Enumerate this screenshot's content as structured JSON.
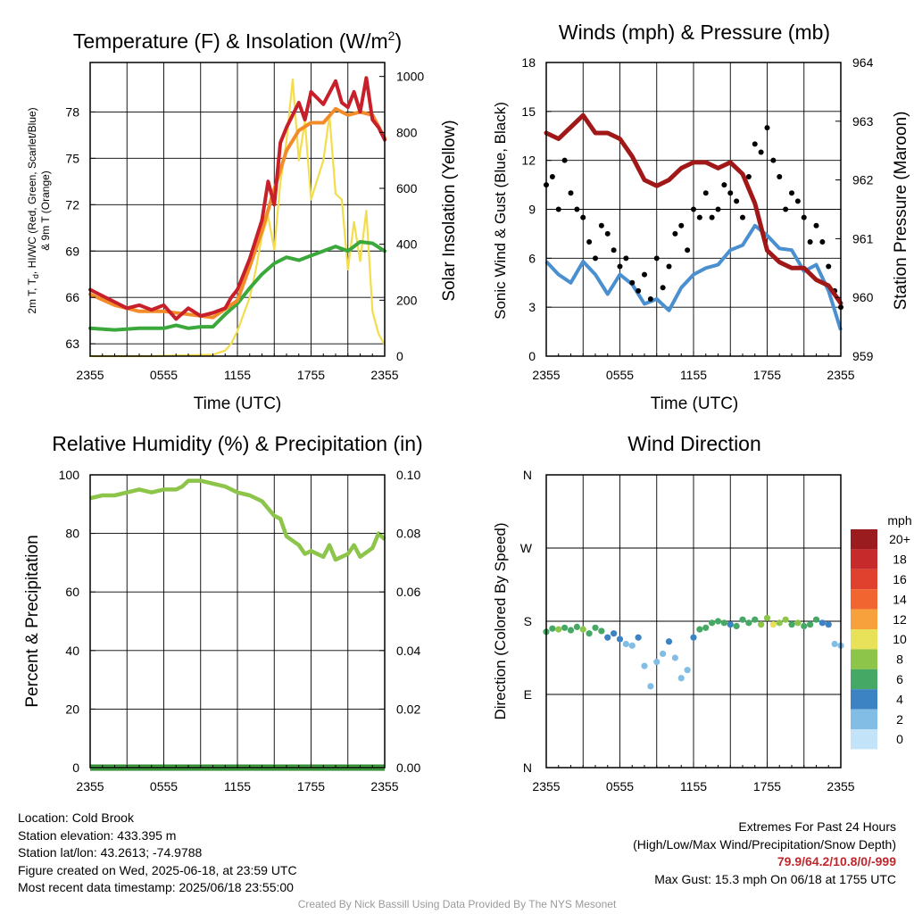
{
  "panels": {
    "temperature": {
      "title": "Temperature (F) & Insolation (W/m",
      "title_sup": "2",
      "title_end": ")",
      "ylabel_line1": "2m T, T",
      "ylabel_sub": "d",
      "ylabel_line1_end": ", HI/WC (Red, Green, Scarlet/Blue)",
      "ylabel_line2": "& 9m T (Orange)",
      "y2label": "Solar Insolation (Yellow)",
      "xlabel": "Time (UTC)"
    },
    "winds": {
      "title": "Winds (mph) & Pressure (mb)",
      "ylabel": "Sonic Wind & Gust (Blue, Black)",
      "y2label": "Station Pressure (Maroon)",
      "xlabel": "Time (UTC)"
    },
    "humidity": {
      "title": "Relative Humidity (%) & Precipitation (in)",
      "ylabel": "Percent & Precipitation"
    },
    "direction": {
      "title": "Wind Direction",
      "ylabel": "Direction (Colored By Speed)",
      "colorbar_title": "mph",
      "colorbar_labels": [
        "20+",
        "18",
        "16",
        "14",
        "12",
        "10",
        "8",
        "6",
        "4",
        "2",
        "0"
      ],
      "colorbar_colors": [
        "#9b1c1f",
        "#c62a2a",
        "#e0402e",
        "#f06530",
        "#f7a13d",
        "#e8e25a",
        "#8cc54a",
        "#46a865",
        "#3c83c3",
        "#82bde6",
        "#c3e4f8"
      ]
    }
  },
  "chart_data": [
    {
      "type": "line",
      "title": "Temperature (F) & Insolation (W/m2)",
      "xlabel": "Time (UTC)",
      "ylabel": "2m T, Td, HI/WC (Red, Green, Scarlet/Blue) & 9m T (Orange)",
      "y2label": "Solar Insolation (Yellow)",
      "x_ticks": [
        "2355",
        "0555",
        "1155",
        "1755",
        "2355"
      ],
      "x_hours": [
        0,
        3,
        6,
        9,
        12,
        15,
        18,
        21,
        24
      ],
      "ylim": [
        62.2,
        81.2
      ],
      "yticks": [
        63,
        66,
        69,
        72,
        75,
        78
      ],
      "y2lim": [
        0,
        1050
      ],
      "y2ticks": [
        0,
        200,
        400,
        600,
        800,
        1000
      ],
      "series": [
        {
          "name": "2m T",
          "color": "#c8202b",
          "axis": "left",
          "x": [
            0,
            1,
            2,
            3,
            4,
            5,
            6,
            7,
            8,
            9,
            10,
            11,
            11.5,
            12,
            13,
            14,
            14.5,
            15,
            15.5,
            16,
            17,
            17.5,
            18,
            19,
            20,
            20.5,
            21,
            21.5,
            22,
            22.5,
            23,
            23.5,
            24
          ],
          "values": [
            66.5,
            66.1,
            65.7,
            65.3,
            65.5,
            65.2,
            65.5,
            64.6,
            65.3,
            64.8,
            65.0,
            65.3,
            66.0,
            66.5,
            68.5,
            71.0,
            73.5,
            72.0,
            76.0,
            77.0,
            78.6,
            77.5,
            79.3,
            78.5,
            80.0,
            78.6,
            78.3,
            79.3,
            78.0,
            80.2,
            77.5,
            77.0,
            76.2
          ]
        },
        {
          "name": "9m T",
          "color": "#f28c28",
          "axis": "left",
          "x": [
            0,
            2,
            4,
            6,
            8,
            10,
            12,
            13,
            14,
            15,
            16,
            17,
            18,
            19,
            20,
            21,
            22,
            23,
            24
          ],
          "values": [
            66.2,
            65.5,
            65.1,
            65.1,
            64.9,
            64.7,
            65.8,
            68.0,
            70.3,
            73.0,
            75.5,
            76.8,
            77.3,
            77.3,
            78.2,
            77.8,
            78.0,
            77.8,
            76.3
          ]
        },
        {
          "name": "Td",
          "color": "#3aa83a",
          "axis": "left",
          "x": [
            0,
            2,
            4,
            6,
            7,
            8,
            9,
            10,
            11,
            12,
            13,
            14,
            15,
            16,
            17,
            18,
            19,
            20,
            21,
            22,
            23,
            24
          ],
          "values": [
            64.0,
            63.9,
            64.0,
            64.0,
            64.2,
            64.0,
            64.1,
            64.1,
            64.9,
            65.6,
            66.6,
            67.5,
            68.2,
            68.6,
            68.4,
            68.7,
            69.0,
            69.3,
            69.0,
            69.6,
            69.5,
            69.0
          ]
        },
        {
          "name": "Solar Insolation",
          "color": "#f3dd4c",
          "axis": "right",
          "x": [
            0,
            5,
            10,
            11,
            11.5,
            12,
            12.5,
            13,
            13.5,
            14,
            14.5,
            15,
            15.5,
            16,
            16.5,
            17,
            17.5,
            18,
            18.5,
            19,
            19.5,
            20,
            20.5,
            21,
            21.5,
            22,
            22.5,
            23,
            23.5,
            24
          ],
          "values": [
            0,
            0,
            5,
            20,
            45,
            90,
            150,
            210,
            310,
            430,
            500,
            380,
            620,
            770,
            990,
            700,
            840,
            560,
            630,
            700,
            860,
            580,
            560,
            310,
            480,
            340,
            520,
            160,
            80,
            40
          ]
        }
      ]
    },
    {
      "type": "line",
      "title": "Winds (mph) & Pressure (mb)",
      "xlabel": "Time (UTC)",
      "ylabel": "Sonic Wind & Gust (Blue, Black)",
      "y2label": "Station Pressure (Maroon)",
      "x_ticks": [
        "2355",
        "0555",
        "1155",
        "1755",
        "2355"
      ],
      "ylim": [
        0,
        18
      ],
      "yticks": [
        0,
        3,
        6,
        9,
        12,
        15,
        18
      ],
      "y2lim": [
        959,
        964
      ],
      "y2ticks": [
        959,
        960,
        961,
        962,
        963,
        964
      ],
      "series": [
        {
          "name": "Sonic Wind",
          "color": "#4a8fd0",
          "axis": "left",
          "x": [
            0,
            1,
            2,
            3,
            4,
            5,
            6,
            7,
            8,
            9,
            10,
            11,
            12,
            13,
            14,
            15,
            16,
            17,
            18,
            19,
            20,
            21,
            22,
            23,
            24
          ],
          "values": [
            5.8,
            5.0,
            4.5,
            5.8,
            5.0,
            3.8,
            5.0,
            4.4,
            3.2,
            3.5,
            2.8,
            4.2,
            5.0,
            5.4,
            5.6,
            6.5,
            6.8,
            8.0,
            7.4,
            6.6,
            6.5,
            5.2,
            5.6,
            4.0,
            1.6
          ]
        },
        {
          "name": "Gust",
          "color": "#000000",
          "axis": "left",
          "style": "points",
          "x": [
            0,
            0.5,
            1,
            1.5,
            2,
            2.5,
            3,
            3.5,
            4,
            4.5,
            5,
            5.5,
            6,
            6.5,
            7,
            7.5,
            8,
            8.5,
            9,
            9.5,
            10,
            10.5,
            11,
            11.5,
            12,
            12.5,
            13,
            13.5,
            14,
            14.5,
            15,
            15.5,
            16,
            16.5,
            17,
            17.5,
            18,
            18.5,
            19,
            19.5,
            20,
            20.5,
            21,
            21.5,
            22,
            22.5,
            23,
            23.5,
            24
          ],
          "values": [
            10.5,
            11.0,
            9.0,
            12.0,
            10.0,
            9.0,
            8.5,
            7.0,
            6.0,
            8.0,
            7.5,
            6.5,
            5.5,
            6.0,
            4.5,
            4.0,
            5.0,
            3.5,
            6.0,
            4.2,
            5.5,
            7.5,
            8.0,
            6.5,
            9.0,
            8.5,
            10.0,
            8.5,
            9.0,
            10.5,
            10.0,
            9.5,
            8.5,
            11.0,
            13.0,
            12.5,
            14.0,
            12.0,
            11.0,
            9.0,
            10.0,
            9.5,
            8.5,
            7.0,
            8.0,
            7.0,
            5.5,
            4.0,
            3.0
          ]
        },
        {
          "name": "Station Pressure",
          "color": "#a01818",
          "axis": "right",
          "x": [
            0,
            1,
            2,
            3,
            4,
            5,
            6,
            7,
            8,
            9,
            10,
            11,
            12,
            13,
            14,
            15,
            16,
            17,
            18,
            19,
            20,
            21,
            22,
            23,
            24
          ],
          "values": [
            962.8,
            962.7,
            962.9,
            963.1,
            962.8,
            962.8,
            962.7,
            962.4,
            962.0,
            961.9,
            962.0,
            962.2,
            962.3,
            962.3,
            962.2,
            962.3,
            962.1,
            961.6,
            960.8,
            960.6,
            960.5,
            960.5,
            960.3,
            960.2,
            959.9
          ]
        }
      ]
    },
    {
      "type": "line",
      "title": "Relative Humidity (%) & Precipitation (in)",
      "ylabel": "Percent & Precipitation",
      "x_ticks": [
        "2355",
        "0555",
        "1155",
        "1755",
        "2355"
      ],
      "ylim": [
        0,
        100
      ],
      "yticks": [
        0,
        20,
        40,
        60,
        80,
        100
      ],
      "y2lim": [
        0,
        0.1
      ],
      "y2ticks": [
        "0.00",
        "0.02",
        "0.04",
        "0.06",
        "0.08",
        "0.10"
      ],
      "series": [
        {
          "name": "Relative Humidity",
          "color": "#8cc54a",
          "axis": "left",
          "x": [
            0,
            1,
            2,
            3,
            4,
            5,
            6,
            7,
            7.5,
            8,
            9,
            10,
            11,
            12,
            13,
            14,
            15,
            15.5,
            16,
            17,
            17.5,
            18,
            19,
            19.5,
            20,
            21,
            21.5,
            22,
            23,
            23.5,
            24
          ],
          "values": [
            92,
            93,
            93,
            94,
            95,
            94,
            95,
            95,
            96,
            98,
            98,
            97,
            96,
            94,
            93,
            91,
            86,
            85,
            79,
            76,
            73,
            74,
            72,
            76,
            71,
            73,
            76,
            72,
            75,
            80,
            78
          ]
        },
        {
          "name": "Precipitation",
          "color": "#2f8a2f",
          "axis": "right",
          "x": [
            0,
            24
          ],
          "values": [
            0,
            0
          ]
        }
      ]
    },
    {
      "type": "scatter",
      "title": "Wind Direction",
      "ylabel": "Direction (Colored By Speed)",
      "x_ticks": [
        "2355",
        "0555",
        "1155",
        "1755",
        "2355"
      ],
      "yticks": [
        "E",
        "S",
        "W",
        "N"
      ],
      "ylim_deg": [
        0,
        360
      ],
      "ytick_deg": [
        0,
        90,
        180,
        270,
        360
      ],
      "ytick_labels": [
        "N",
        "E",
        "S",
        "W",
        "N"
      ],
      "colorbar_label": "mph",
      "series": [
        {
          "name": "Direction",
          "x": [
            0,
            0.5,
            1,
            1.5,
            2,
            2.5,
            3,
            3.5,
            4,
            4.5,
            5,
            5.5,
            6,
            6.5,
            7,
            7.5,
            8,
            8.5,
            9,
            9.5,
            10,
            10.5,
            11,
            11.5,
            12,
            12.5,
            13,
            13.5,
            14,
            14.5,
            15,
            15.5,
            16,
            16.5,
            17,
            17.5,
            18,
            18.5,
            19,
            19.5,
            20,
            20.5,
            21,
            21.5,
            22,
            22.5,
            23,
            23.5,
            24
          ],
          "values": [
            167,
            171,
            170,
            172,
            169,
            173,
            170,
            165,
            172,
            168,
            160,
            165,
            158,
            152,
            150,
            160,
            125,
            100,
            130,
            140,
            155,
            135,
            110,
            120,
            160,
            170,
            172,
            178,
            180,
            178,
            176,
            174,
            182,
            178,
            182,
            176,
            184,
            176,
            178,
            182,
            176,
            178,
            174,
            176,
            182,
            178,
            176,
            152,
            150
          ],
          "speeds": [
            5,
            6,
            7,
            6,
            5,
            6,
            7,
            5,
            6,
            5,
            4,
            3,
            3,
            2,
            2,
            3,
            1,
            1,
            2,
            2,
            3,
            2,
            1,
            2,
            3,
            5,
            6,
            6,
            5,
            5,
            4,
            5,
            6,
            5,
            6,
            7,
            8,
            9,
            8,
            7,
            6,
            7,
            6,
            5,
            6,
            4,
            3,
            2,
            1
          ]
        }
      ]
    }
  ],
  "info": {
    "location": "Location: Cold Brook",
    "elevation": "Station elevation: 433.395 m",
    "latlon": "Station lat/lon: 43.2613; -74.9788",
    "created": "Figure created on Wed, 2025-06-18, at 23:59 UTC",
    "recent": "Most recent data timestamp: 2025/06/18 23:55:00",
    "extremes_title": "Extremes For Past 24 Hours",
    "extremes_sub": "(High/Low/Max Wind/Precipitation/Snow Depth)",
    "extremes_values": "79.9/64.2/10.8/0/-999",
    "max_gust": "Max Gust: 15.3 mph On 06/18 at 1755 UTC",
    "credit": "Created By Nick Bassill Using Data Provided By The NYS Mesonet"
  }
}
